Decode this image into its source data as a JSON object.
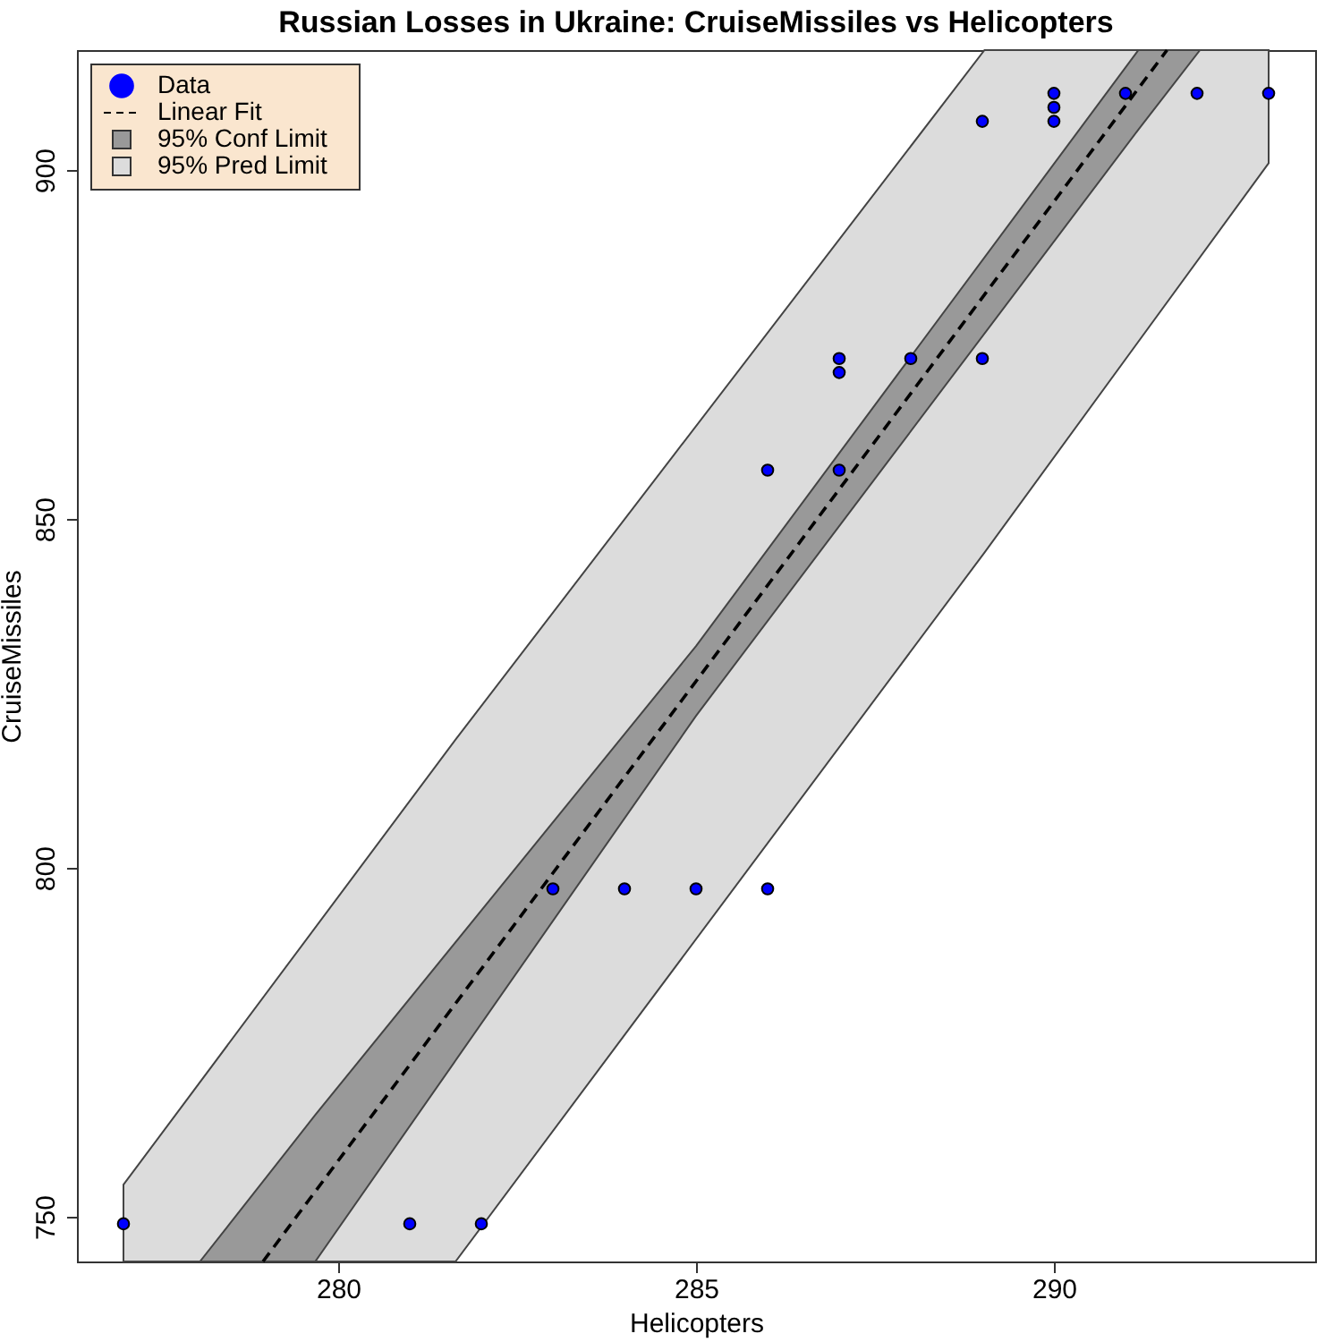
{
  "chart_data": {
    "type": "scatter",
    "title": "Russian Losses in Ukraine: CruiseMissiles vs Helicopters",
    "xlabel": "Helicopters",
    "ylabel": "CruiseMissiles",
    "xlim": [
      276.35,
      293.65
    ],
    "ylim": [
      743.6,
      917.2
    ],
    "xticks": [
      280,
      285,
      290
    ],
    "yticks": [
      750,
      800,
      850,
      900
    ],
    "grid": false,
    "legend": "top left",
    "series": [
      {
        "name": "Data",
        "type": "scatter",
        "marker": "circle",
        "color": "#0000ff",
        "x": [
          277,
          281,
          282,
          283,
          284,
          285,
          286,
          286,
          287,
          287,
          287,
          288,
          289,
          289,
          290,
          290,
          290,
          291,
          292,
          293
        ],
        "values": [
          749,
          749,
          749,
          797,
          797,
          797,
          797,
          857,
          857,
          873,
          871,
          873,
          873,
          907,
          911,
          909,
          907,
          911,
          911,
          911
        ]
      },
      {
        "name": "Linear Fit",
        "type": "line",
        "line_style": "dashed",
        "marker": "none",
        "color": "#000000",
        "x": [
          278.95,
          291.58
        ],
        "values": [
          743.6,
          917.2
        ]
      },
      {
        "name": "95% Conf Limit",
        "type": "area",
        "color": "#999999",
        "x": [
          278.07,
          279.68,
          285,
          291.18,
          292.04
        ],
        "values": [
          null,
          null,
          null,
          null,
          null
        ],
        "lower": [
          743.6,
          743.6,
          821.8,
          905.8,
          917.2
        ],
        "upper": [
          743.6,
          764.6,
          831.8,
          917.2,
          917.2
        ]
      },
      {
        "name": "95% Pred Limit",
        "type": "area",
        "color": "#dcdcdc",
        "x": [
          277,
          281.64,
          289.03,
          293
        ],
        "values": [
          null,
          null,
          null,
          null
        ],
        "lower": [
          743.6,
          743.6,
          845.2,
          901
        ],
        "upper": [
          754.6,
          818.4,
          917.2,
          917.2
        ]
      }
    ]
  }
}
